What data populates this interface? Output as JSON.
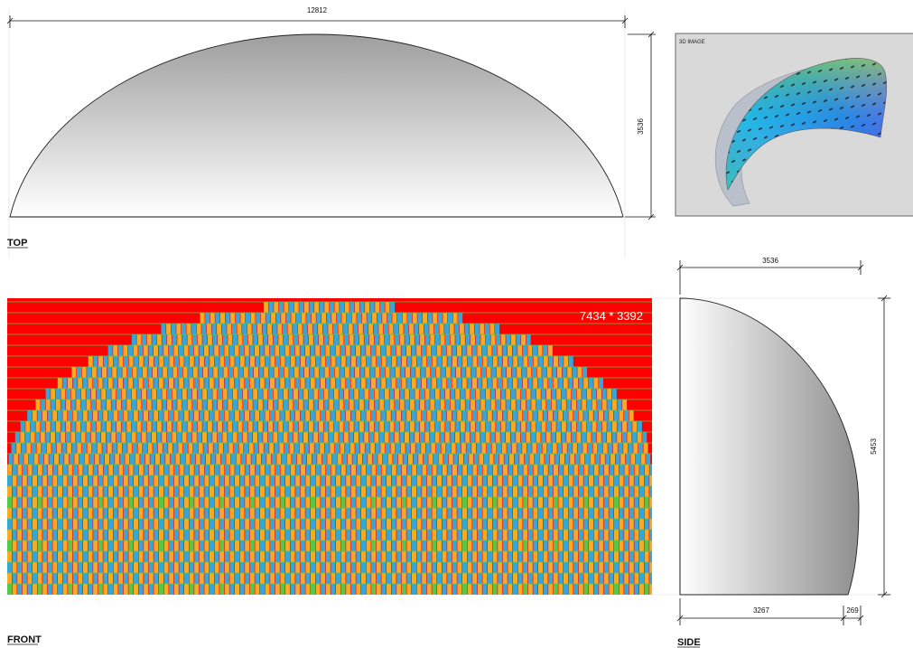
{
  "views": {
    "top": {
      "label": "TOP",
      "width_dim": "12812",
      "height_dim": "3536"
    },
    "image3d": {
      "label": "3D IMAGE"
    },
    "front": {
      "label": "FRONT",
      "size_text": "7434 * 3392"
    },
    "side": {
      "label": "SIDE",
      "width_dim": "3536",
      "height_dim": "5453",
      "bottom_dim_main": "3267",
      "bottom_dim_small": "269"
    }
  },
  "colors": {
    "front_background": "#ff0000",
    "tile_orange": "#f7a928",
    "tile_blue": "#35a6d9",
    "tile_green": "#57c64a",
    "panel_gray": "#d9d9d9"
  }
}
